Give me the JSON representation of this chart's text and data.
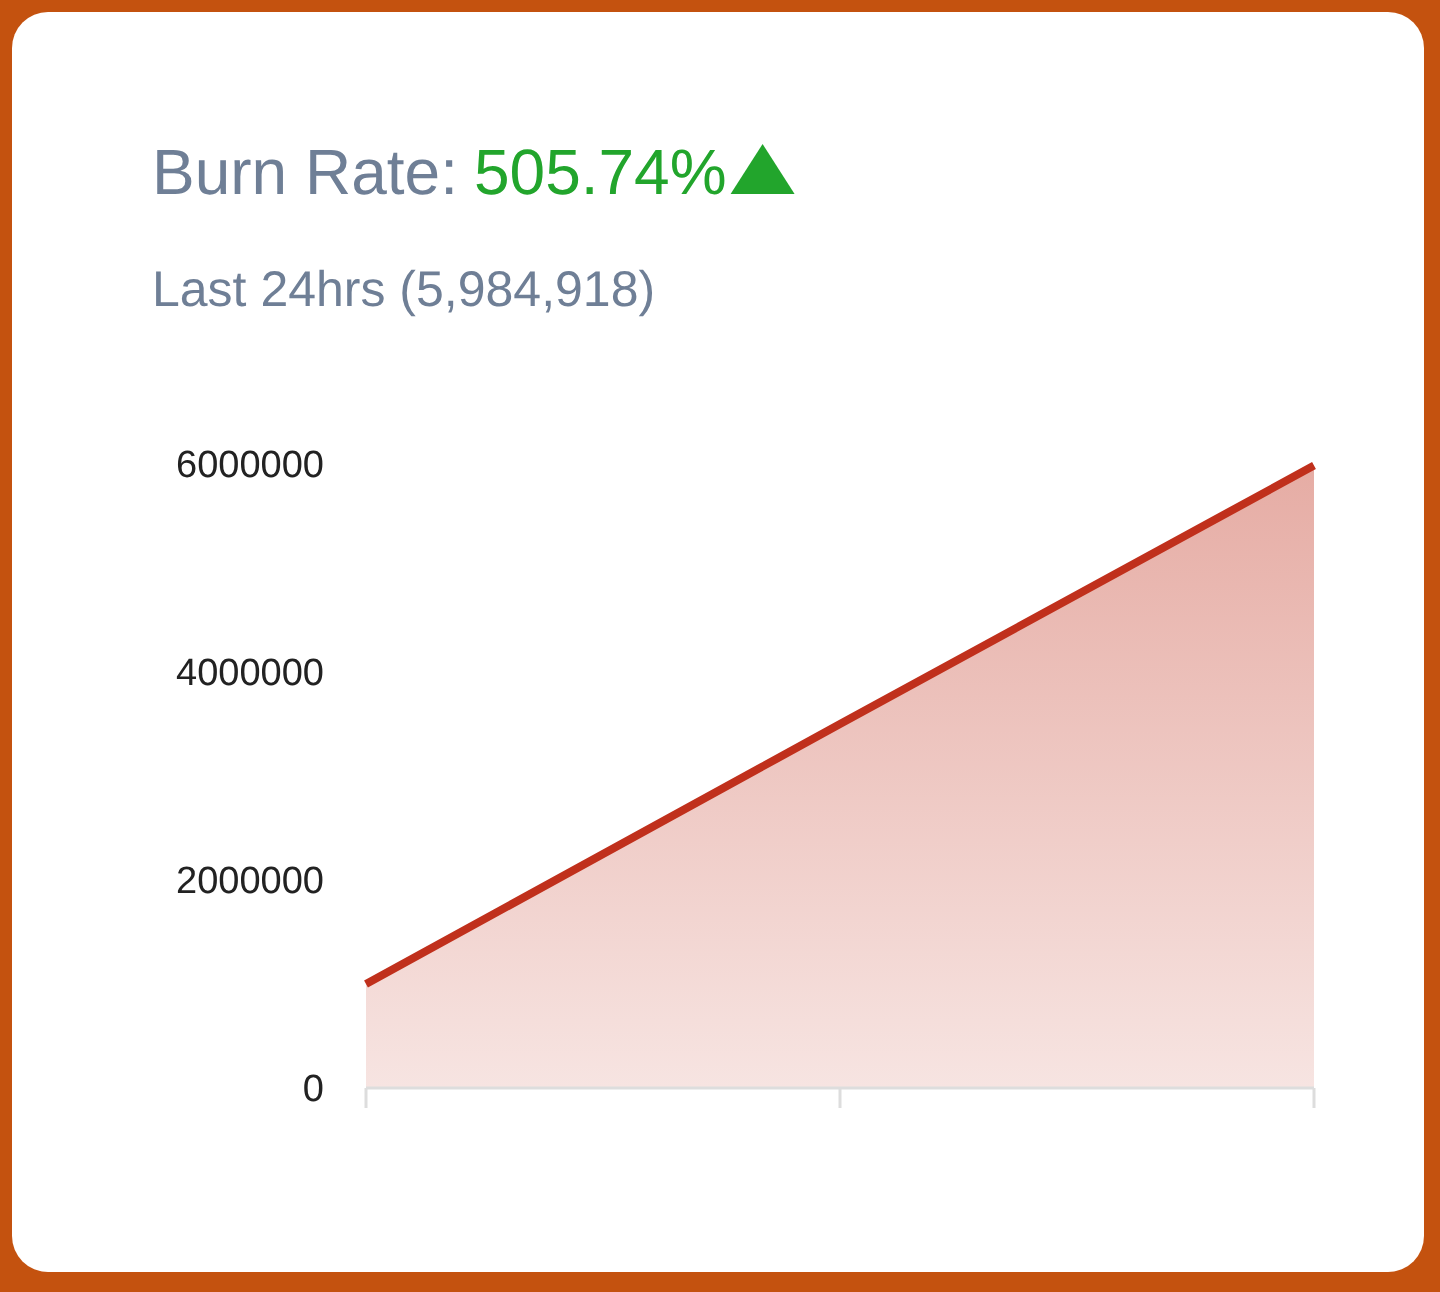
{
  "chart_data": {
    "type": "area",
    "title": "Burn Rate:",
    "subtitle": "Last 24hrs (5,984,918)",
    "annotations": [
      "505.74%"
    ],
    "categories": [
      null,
      null,
      null
    ],
    "series": [
      {
        "color": "#c0301c",
        "values": [
          1000000,
          3500000,
          5984918
        ]
      }
    ],
    "ylim": [
      0,
      6000000
    ],
    "yticks": [
      0,
      2000000,
      4000000,
      6000000
    ]
  }
}
